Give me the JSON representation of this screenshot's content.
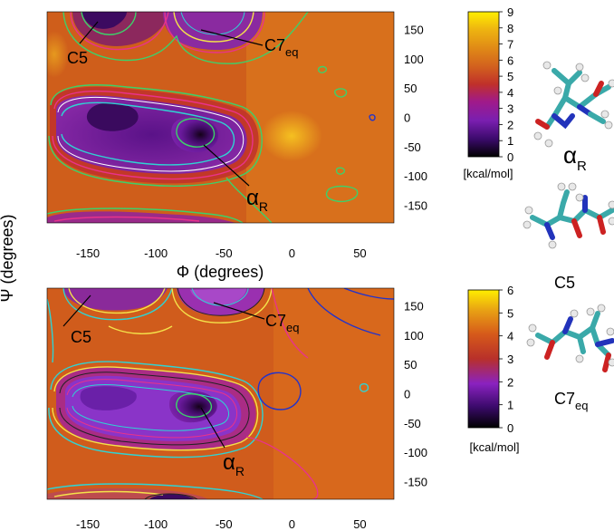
{
  "chart_data": [
    {
      "type": "heatmap",
      "xlabel": "Φ (degrees)",
      "ylabel": "Ψ (degrees)",
      "x_ticks": [
        "-150",
        "-100",
        "-50",
        "0",
        "50"
      ],
      "x_tick_values": [
        -150,
        -100,
        -50,
        0,
        50
      ],
      "y_ticks": [
        "150",
        "100",
        "50",
        "0",
        "-50",
        "-100",
        "-150"
      ],
      "y_tick_values": [
        150,
        100,
        50,
        0,
        -50,
        -100,
        -150
      ],
      "xlim": [
        -180,
        75
      ],
      "ylim": [
        -180,
        180
      ],
      "colorbar": {
        "label": "[kcal/mol]",
        "ticks": [
          "9",
          "8",
          "7",
          "6",
          "5",
          "4",
          "3",
          "2",
          "1",
          "0"
        ],
        "range": [
          0,
          9
        ]
      },
      "annotations": [
        {
          "text": "C5",
          "phi": -150,
          "psi": 170
        },
        {
          "text": "C7",
          "sub": "eq",
          "phi": -75,
          "psi": 160
        },
        {
          "text": "α",
          "sub": "R",
          "phi": -70,
          "psi": -15
        }
      ]
    },
    {
      "type": "heatmap",
      "x_ticks": [
        "-150",
        "-100",
        "-50",
        "0",
        "50"
      ],
      "x_tick_values": [
        -150,
        -100,
        -50,
        0,
        50
      ],
      "y_ticks": [
        "150",
        "100",
        "50",
        "0",
        "-50",
        "-100",
        "-150"
      ],
      "y_tick_values": [
        150,
        100,
        50,
        0,
        -50,
        -100,
        -150
      ],
      "xlim": [
        -180,
        75
      ],
      "ylim": [
        -180,
        180
      ],
      "colorbar": {
        "label": "[kcal/mol]",
        "ticks": [
          "6",
          "5",
          "4",
          "3",
          "2",
          "1",
          "0"
        ],
        "range": [
          0,
          6
        ]
      },
      "annotations": [
        {
          "text": "C5",
          "phi": -135,
          "psi": 160
        },
        {
          "text": "C7",
          "sub": "eq",
          "phi": -70,
          "psi": 160
        },
        {
          "text": "α",
          "sub": "R",
          "phi": -70,
          "psi": -15
        }
      ]
    }
  ],
  "side_labels": [
    {
      "text": "α",
      "sub": "R"
    },
    {
      "text": "C5"
    },
    {
      "text": "C7",
      "sub": "eq"
    }
  ],
  "colors": {
    "background": "#d2691e",
    "minimum": "#1a0520",
    "basin": "#7a1fb0",
    "contour_green": "#3dd16a",
    "contour_pink": "#e8338a",
    "contour_yellow": "#f4e24a",
    "contour_cyan": "#2fd3d3",
    "contour_blue": "#2233cc",
    "carbon": "#3aa9a9",
    "oxygen": "#cc2222",
    "nitrogen": "#2233bb",
    "hydrogen": "#e8e8e8"
  }
}
